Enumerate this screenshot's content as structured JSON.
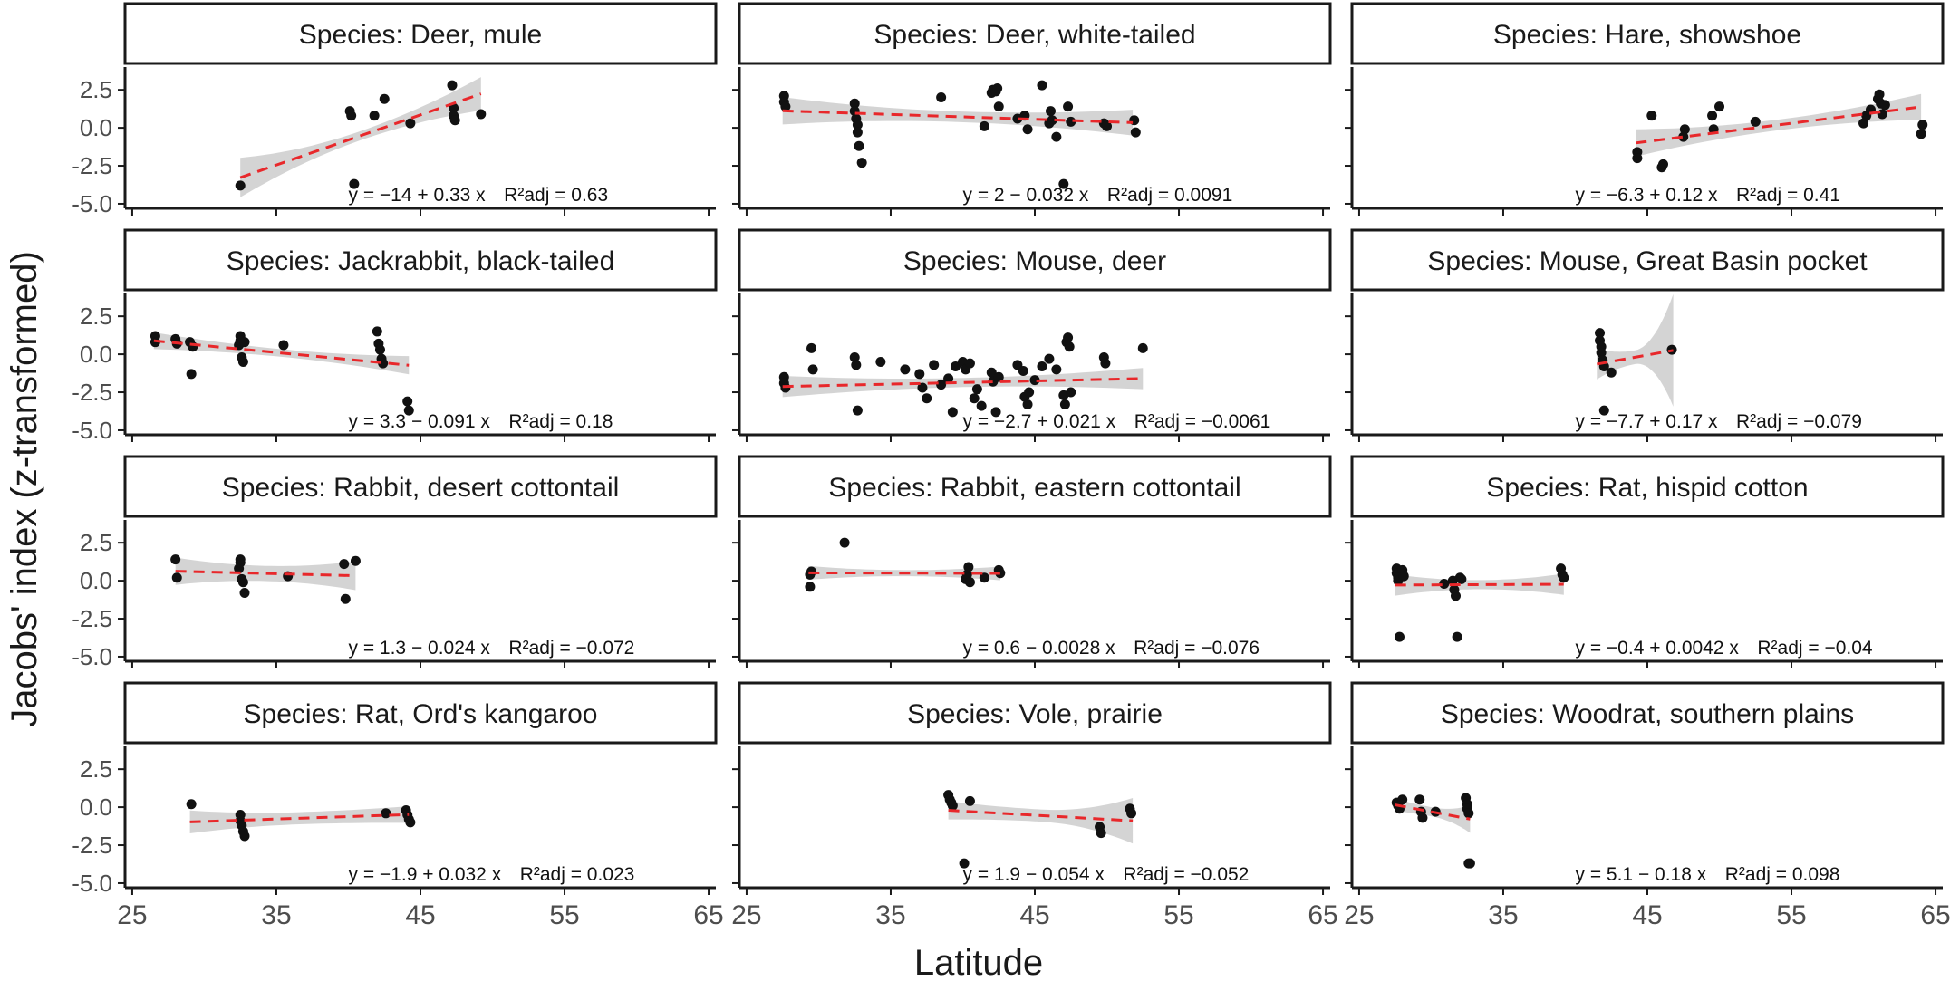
{
  "chart_data": {
    "type": "scatter",
    "facet_layout": "4x3 grid, shared x and y axes",
    "xlabel": "Latitude",
    "ylabel": "Jacobs' index (z-transformed)",
    "x_ticks": [
      25,
      35,
      45,
      55,
      65
    ],
    "y_ticks": [
      2.5,
      0.0,
      -2.5,
      -5.0
    ],
    "xlim": [
      24.5,
      65.5
    ],
    "ylim": [
      -5.3,
      4.0
    ],
    "fit_style": "red dashed linear fit with grey confidence band",
    "panels": [
      {
        "title": "Species: Deer, mule",
        "equation": "y = −14 + 0.33 x",
        "r2": "R²adj = 0.63",
        "eq_x": 40,
        "eq_y": -4.35,
        "fit": {
          "intercept": -14.0,
          "slope": 0.33,
          "x_range": [
            32.5,
            49.2
          ],
          "se": [
            1.3,
            0.3,
            1.1
          ]
        },
        "points": [
          [
            32.5,
            -3.8
          ],
          [
            40.4,
            -3.7
          ],
          [
            40.1,
            1.1
          ],
          [
            40.2,
            0.8
          ],
          [
            41.8,
            0.8
          ],
          [
            42.5,
            1.9
          ],
          [
            44.3,
            0.3
          ],
          [
            47.2,
            2.8
          ],
          [
            47.3,
            1.3
          ],
          [
            47.3,
            0.8
          ],
          [
            47.4,
            0.5
          ],
          [
            49.2,
            0.9
          ]
        ]
      },
      {
        "title": "Species: Deer, white-tailed",
        "equation": "y = 2 − 0.032 x",
        "r2": "R²adj = 0.0091",
        "eq_x": 40,
        "eq_y": -4.35,
        "fit": {
          "intercept": 2.0,
          "slope": -0.032,
          "x_range": [
            27.5,
            51.8
          ],
          "se": [
            0.9,
            0.35,
            0.85
          ]
        },
        "points": [
          [
            27.6,
            2.1
          ],
          [
            27.6,
            1.7
          ],
          [
            27.7,
            1.4
          ],
          [
            32.5,
            1.6
          ],
          [
            32.5,
            1.1
          ],
          [
            32.6,
            0.6
          ],
          [
            32.7,
            0.2
          ],
          [
            32.7,
            -0.3
          ],
          [
            32.8,
            -1.2
          ],
          [
            33.0,
            -2.3
          ],
          [
            38.5,
            2.0
          ],
          [
            41.5,
            0.1
          ],
          [
            42.0,
            2.3
          ],
          [
            42.1,
            2.5
          ],
          [
            42.3,
            2.4
          ],
          [
            42.4,
            2.6
          ],
          [
            42.5,
            1.4
          ],
          [
            43.8,
            0.6
          ],
          [
            44.3,
            0.8
          ],
          [
            44.5,
            -0.1
          ],
          [
            45.5,
            2.8
          ],
          [
            46.0,
            0.3
          ],
          [
            46.1,
            1.1
          ],
          [
            46.2,
            0.5
          ],
          [
            46.5,
            -0.6
          ],
          [
            47.0,
            -3.7
          ],
          [
            47.3,
            1.4
          ],
          [
            47.5,
            0.4
          ],
          [
            49.8,
            0.3
          ],
          [
            50.0,
            0.1
          ],
          [
            51.9,
            0.5
          ],
          [
            52.0,
            -0.3
          ]
        ]
      },
      {
        "title": "Species: Hare, showshoe",
        "equation": "y = −6.3 + 0.12 x",
        "r2": "R²adj = 0.41",
        "eq_x": 40,
        "eq_y": -4.35,
        "fit": {
          "intercept": -6.3,
          "slope": 0.12,
          "x_range": [
            44.2,
            64.0
          ],
          "se": [
            0.9,
            0.35,
            0.85
          ]
        },
        "points": [
          [
            44.3,
            -1.6
          ],
          [
            44.3,
            -2.0
          ],
          [
            45.3,
            0.8
          ],
          [
            46.0,
            -2.6
          ],
          [
            46.1,
            -2.4
          ],
          [
            47.5,
            -0.6
          ],
          [
            47.6,
            -0.1
          ],
          [
            49.5,
            0.8
          ],
          [
            49.6,
            -0.1
          ],
          [
            50.0,
            1.4
          ],
          [
            52.5,
            0.4
          ],
          [
            60.0,
            0.3
          ],
          [
            60.2,
            0.8
          ],
          [
            60.5,
            1.2
          ],
          [
            61.0,
            1.9
          ],
          [
            61.1,
            2.2
          ],
          [
            61.2,
            1.6
          ],
          [
            61.3,
            0.9
          ],
          [
            61.5,
            1.5
          ],
          [
            64.0,
            -0.4
          ],
          [
            64.1,
            0.2
          ]
        ]
      },
      {
        "title": "Species: Jackrabbit, black-tailed",
        "equation": "y = 3.3 − 0.091 x",
        "r2": "R²adj = 0.18",
        "eq_x": 40,
        "eq_y": -4.35,
        "fit": {
          "intercept": 3.3,
          "slope": -0.091,
          "x_range": [
            26.5,
            44.2
          ],
          "se": [
            0.55,
            0.25,
            0.6
          ]
        },
        "points": [
          [
            26.6,
            1.2
          ],
          [
            26.6,
            0.8
          ],
          [
            28.0,
            1.0
          ],
          [
            28.1,
            0.7
          ],
          [
            29.0,
            0.8
          ],
          [
            29.1,
            -1.3
          ],
          [
            29.2,
            0.5
          ],
          [
            32.4,
            0.6
          ],
          [
            32.5,
            1.2
          ],
          [
            32.5,
            0.9
          ],
          [
            32.6,
            -0.2
          ],
          [
            32.7,
            -0.5
          ],
          [
            32.8,
            0.8
          ],
          [
            35.5,
            0.6
          ],
          [
            42.0,
            1.5
          ],
          [
            42.1,
            0.7
          ],
          [
            42.2,
            0.3
          ],
          [
            42.3,
            -0.3
          ],
          [
            42.4,
            -0.6
          ],
          [
            44.1,
            -3.1
          ],
          [
            44.2,
            -3.7
          ]
        ]
      },
      {
        "title": "Species: Mouse, deer",
        "equation": "y = −2.7 + 0.021 x",
        "r2": "R²adj = −0.0061",
        "eq_x": 40,
        "eq_y": -4.35,
        "fit": {
          "intercept": -2.7,
          "slope": 0.021,
          "x_range": [
            27.5,
            52.5
          ],
          "se": [
            0.7,
            0.3,
            0.7
          ]
        },
        "points": [
          [
            27.6,
            -1.5
          ],
          [
            27.6,
            -1.9
          ],
          [
            27.7,
            -2.2
          ],
          [
            29.5,
            0.4
          ],
          [
            29.6,
            -1.0
          ],
          [
            32.5,
            -0.2
          ],
          [
            32.6,
            -0.7
          ],
          [
            32.7,
            -3.7
          ],
          [
            34.3,
            -0.5
          ],
          [
            36.0,
            -1.0
          ],
          [
            37.0,
            -1.3
          ],
          [
            37.2,
            -2.2
          ],
          [
            37.5,
            -2.9
          ],
          [
            38.0,
            -0.7
          ],
          [
            38.5,
            -2.0
          ],
          [
            39.0,
            -1.6
          ],
          [
            39.3,
            -3.8
          ],
          [
            39.5,
            -0.8
          ],
          [
            40.0,
            -0.5
          ],
          [
            40.2,
            -1.0
          ],
          [
            40.5,
            -0.6
          ],
          [
            40.8,
            -2.9
          ],
          [
            41.0,
            -2.3
          ],
          [
            41.3,
            -3.4
          ],
          [
            42.0,
            -1.2
          ],
          [
            42.1,
            -1.8
          ],
          [
            42.3,
            -3.8
          ],
          [
            42.5,
            -1.5
          ],
          [
            43.8,
            -0.7
          ],
          [
            44.2,
            -1.1
          ],
          [
            44.3,
            -2.8
          ],
          [
            44.5,
            -3.3
          ],
          [
            44.6,
            -2.5
          ],
          [
            45.0,
            -1.7
          ],
          [
            45.5,
            -0.8
          ],
          [
            46.0,
            -0.3
          ],
          [
            46.5,
            -1.0
          ],
          [
            47.0,
            -2.7
          ],
          [
            47.1,
            -3.3
          ],
          [
            47.2,
            0.8
          ],
          [
            47.3,
            1.1
          ],
          [
            47.4,
            0.5
          ],
          [
            47.5,
            -2.5
          ],
          [
            49.8,
            -0.2
          ],
          [
            49.9,
            -0.6
          ],
          [
            52.5,
            0.4
          ]
        ]
      },
      {
        "title": "Species: Mouse, Great Basin pocket",
        "equation": "y = −7.7 + 0.17 x",
        "r2": "R²adj = −0.079",
        "eq_x": 40,
        "eq_y": -4.35,
        "fit": {
          "intercept": -7.7,
          "slope": 0.17,
          "x_range": [
            41.5,
            46.8
          ],
          "se": [
            1.0,
            0.45,
            3.7
          ]
        },
        "points": [
          [
            41.7,
            1.4
          ],
          [
            41.7,
            0.9
          ],
          [
            41.8,
            0.5
          ],
          [
            41.8,
            0.1
          ],
          [
            41.9,
            -0.4
          ],
          [
            42.0,
            -0.8
          ],
          [
            42.0,
            -3.7
          ],
          [
            42.5,
            -1.2
          ],
          [
            46.7,
            0.3
          ]
        ]
      },
      {
        "title": "Species: Rabbit, desert cottontail",
        "equation": "y = 1.3 − 0.024 x",
        "r2": "R²adj = −0.072",
        "eq_x": 40,
        "eq_y": -4.35,
        "fit": {
          "intercept": 1.3,
          "slope": -0.024,
          "x_range": [
            28.0,
            40.5
          ],
          "se": [
            0.9,
            0.5,
            0.95
          ]
        },
        "points": [
          [
            28.0,
            1.4
          ],
          [
            28.1,
            0.2
          ],
          [
            32.4,
            0.8
          ],
          [
            32.5,
            1.2
          ],
          [
            32.5,
            1.4
          ],
          [
            32.6,
            0.1
          ],
          [
            32.7,
            -0.1
          ],
          [
            32.8,
            -0.8
          ],
          [
            35.8,
            0.3
          ],
          [
            39.7,
            1.1
          ],
          [
            39.8,
            -1.2
          ],
          [
            40.5,
            1.3
          ]
        ]
      },
      {
        "title": "Species: Rabbit, eastern cottontail",
        "equation": "y = 0.6 − 0.0028 x",
        "r2": "R²adj = −0.076",
        "eq_x": 40,
        "eq_y": -4.35,
        "fit": {
          "intercept": 0.6,
          "slope": -0.0028,
          "x_range": [
            29.3,
            42.6
          ],
          "se": [
            0.45,
            0.2,
            0.45
          ]
        },
        "points": [
          [
            29.4,
            0.4
          ],
          [
            29.4,
            -0.4
          ],
          [
            29.5,
            0.6
          ],
          [
            31.8,
            2.5
          ],
          [
            40.2,
            0.1
          ],
          [
            40.3,
            0.4
          ],
          [
            40.4,
            0.9
          ],
          [
            40.5,
            -0.1
          ],
          [
            41.5,
            0.2
          ],
          [
            42.5,
            0.7
          ],
          [
            42.6,
            0.5
          ]
        ]
      },
      {
        "title": "Species: Rat, hispid cotton",
        "equation": "y = −0.4 + 0.0042 x",
        "r2": "R²adj = −0.04",
        "eq_x": 40,
        "eq_y": -4.35,
        "fit": {
          "intercept": -0.4,
          "slope": 0.0042,
          "x_range": [
            27.5,
            39.2
          ],
          "se": [
            0.7,
            0.3,
            0.7
          ]
        },
        "points": [
          [
            27.6,
            0.8
          ],
          [
            27.6,
            0.5
          ],
          [
            27.7,
            0.2
          ],
          [
            27.7,
            0.0
          ],
          [
            27.8,
            -3.7
          ],
          [
            28.0,
            0.7
          ],
          [
            28.1,
            0.3
          ],
          [
            30.9,
            -0.2
          ],
          [
            31.5,
            0.0
          ],
          [
            31.6,
            -0.6
          ],
          [
            31.7,
            -1.0
          ],
          [
            31.8,
            -3.7
          ],
          [
            32.0,
            0.2
          ],
          [
            32.1,
            0.1
          ],
          [
            39.0,
            0.8
          ],
          [
            39.1,
            0.4
          ],
          [
            39.2,
            0.2
          ]
        ]
      },
      {
        "title": "Species: Rat, Ord's kangaroo",
        "equation": "y = −1.9 + 0.032 x",
        "r2": "R²adj = 0.023",
        "eq_x": 40,
        "eq_y": -4.35,
        "fit": {
          "intercept": -1.9,
          "slope": 0.032,
          "x_range": [
            29.0,
            44.2
          ],
          "se": [
            0.75,
            0.4,
            0.55
          ]
        },
        "points": [
          [
            29.1,
            0.2
          ],
          [
            32.5,
            -0.5
          ],
          [
            32.5,
            -0.9
          ],
          [
            32.6,
            -1.2
          ],
          [
            32.7,
            -1.6
          ],
          [
            32.8,
            -1.9
          ],
          [
            42.6,
            -0.4
          ],
          [
            44.0,
            -0.2
          ],
          [
            44.1,
            -0.5
          ],
          [
            44.2,
            -0.8
          ],
          [
            44.3,
            -1.0
          ]
        ]
      },
      {
        "title": "Species: Vole, prairie",
        "equation": "y = 1.9 − 0.054 x",
        "r2": "R²adj = −0.052",
        "eq_x": 40,
        "eq_y": -4.35,
        "fit": {
          "intercept": 1.9,
          "slope": -0.054,
          "x_range": [
            39.0,
            51.8
          ],
          "se": [
            0.6,
            0.4,
            1.5
          ]
        },
        "points": [
          [
            39.0,
            0.8
          ],
          [
            39.1,
            0.5
          ],
          [
            39.2,
            0.3
          ],
          [
            39.3,
            0.1
          ],
          [
            40.1,
            -3.7
          ],
          [
            40.5,
            0.4
          ],
          [
            49.5,
            -1.3
          ],
          [
            49.6,
            -1.7
          ],
          [
            51.6,
            -0.1
          ],
          [
            51.7,
            -0.4
          ]
        ]
      },
      {
        "title": "Species: Woodrat, southern plains",
        "equation": "y = 5.1 − 0.18 x",
        "r2": "R²adj = 0.098",
        "eq_x": 40,
        "eq_y": -4.35,
        "fit": {
          "intercept": 5.1,
          "slope": -0.18,
          "x_range": [
            27.5,
            32.7
          ],
          "se": [
            0.4,
            0.3,
            0.9
          ]
        },
        "points": [
          [
            27.6,
            0.3
          ],
          [
            27.7,
            0.1
          ],
          [
            27.8,
            -0.1
          ],
          [
            28.0,
            0.5
          ],
          [
            29.2,
            0.5
          ],
          [
            29.3,
            -0.3
          ],
          [
            29.4,
            -0.7
          ],
          [
            30.3,
            -0.3
          ],
          [
            32.4,
            0.6
          ],
          [
            32.5,
            0.2
          ],
          [
            32.5,
            -0.1
          ],
          [
            32.6,
            -0.4
          ],
          [
            32.6,
            -3.7
          ],
          [
            32.7,
            -3.7
          ]
        ]
      }
    ]
  }
}
